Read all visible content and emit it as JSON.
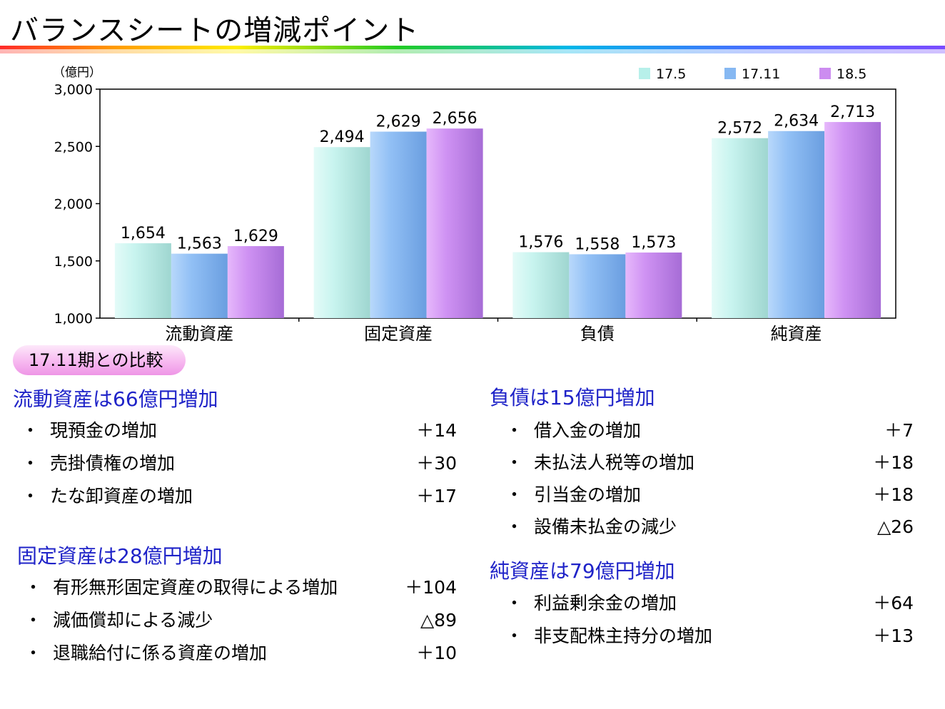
{
  "title": "バランスシートの増減ポイント",
  "colors": {
    "s175": "#b7f0ea",
    "s1711": "#86b8f2",
    "s185": "#cc8cf0",
    "heading": "#1f23c8"
  },
  "chart_data": {
    "type": "bar",
    "unit_label": "（億円）",
    "categories": [
      "流動資産",
      "固定資産",
      "負債",
      "純資産"
    ],
    "series": [
      {
        "name": "17.5",
        "values": [
          1654,
          2494,
          1576,
          2572
        ],
        "labels": [
          "1,654",
          "2,494",
          "1,576",
          "2,572"
        ]
      },
      {
        "name": "17.11",
        "values": [
          1563,
          2629,
          1558,
          2634
        ],
        "labels": [
          "1,563",
          "2,629",
          "1,558",
          "2,634"
        ]
      },
      {
        "name": "18.5",
        "values": [
          1629,
          2656,
          1573,
          2713
        ],
        "labels": [
          "1,629",
          "2,656",
          "1,573",
          "2,713"
        ]
      }
    ],
    "ylim": [
      1000,
      3000
    ],
    "yticks": [
      "1,000",
      "1,500",
      "2,000",
      "2,500",
      "3,000"
    ],
    "legend_position": "top-right",
    "grid": false
  },
  "comparison_label": "17.11期との比較",
  "sections": {
    "current": {
      "heading": "流動資産は66億円増加",
      "items": [
        {
          "bullet": "・",
          "text": "現預金の増加",
          "value": "＋14"
        },
        {
          "bullet": "・",
          "text": "売掛債権の増加",
          "value": "＋30"
        },
        {
          "bullet": "・",
          "text": "たな卸資産の増加",
          "value": "＋17"
        }
      ]
    },
    "fixed": {
      "heading": "固定資産は28億円増加",
      "items": [
        {
          "bullet": "・",
          "text": "有形無形固定資産の取得による増加",
          "value": "＋104"
        },
        {
          "bullet": "・",
          "text": "減価償却による減少",
          "value": "△89"
        },
        {
          "bullet": "・",
          "text": "退職給付に係る資産の増加",
          "value": "＋10"
        }
      ]
    },
    "liabilities": {
      "heading": "負債は15億円増加",
      "items": [
        {
          "bullet": "・",
          "text": "借入金の増加",
          "value": "＋7"
        },
        {
          "bullet": "・",
          "text": "未払法人税等の増加",
          "value": "＋18"
        },
        {
          "bullet": "・",
          "text": "引当金の増加",
          "value": "＋18"
        },
        {
          "bullet": "・",
          "text": "設備未払金の減少",
          "value": "△26"
        }
      ]
    },
    "equity": {
      "heading": "純資産は79億円増加",
      "items": [
        {
          "bullet": "・",
          "text": "利益剰余金の増加",
          "value": "＋64"
        },
        {
          "bullet": "・",
          "text": "非支配株主持分の増加",
          "value": "＋13"
        }
      ]
    }
  }
}
